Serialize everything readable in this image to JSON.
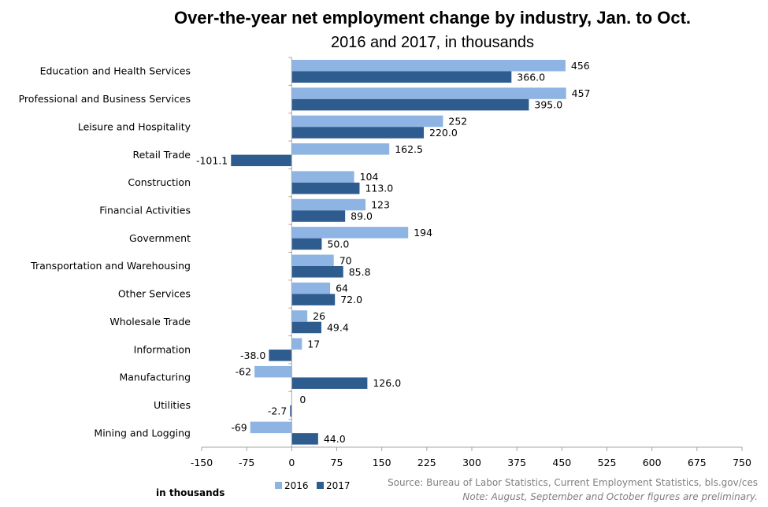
{
  "chart_data": {
    "type": "bar",
    "orientation": "horizontal",
    "title": "Over-the-year net employment change by industry, Jan. to Oct.",
    "subtitle": "2016 and 2017, in thousands",
    "categories": [
      "Education and Health Services",
      "Professional and Business Services",
      "Leisure and Hospitality",
      "Retail Trade",
      "Construction",
      "Financial Activities",
      "Government",
      "Transportation and Warehousing",
      "Other Services",
      "Wholesale Trade",
      "Information",
      "Manufacturing",
      "Utilities",
      "Mining and Logging"
    ],
    "series": [
      {
        "name": "2016",
        "color": "#8eb4e3",
        "values": [
          456,
          457,
          252,
          162.5,
          104,
          123,
          194,
          70,
          64,
          26,
          17,
          -62,
          0,
          -69
        ],
        "labels": [
          "456",
          "457",
          "252",
          "162.5",
          "104",
          "123",
          "194",
          "70",
          "64",
          "26",
          "17",
          "-62",
          "0",
          "-69"
        ]
      },
      {
        "name": "2017",
        "color": "#2e5c8f",
        "values": [
          366.0,
          395.0,
          220.0,
          -101.1,
          113.0,
          89.0,
          50.0,
          85.8,
          72.0,
          49.4,
          -38.0,
          126.0,
          -2.7,
          44.0
        ],
        "labels": [
          "366.0",
          "395.0",
          "220.0",
          "-101.1",
          "113.0",
          "89.0",
          "50.0",
          "85.8",
          "72.0",
          "49.4",
          "-38.0",
          "126.0",
          "-2.7",
          "44.0"
        ]
      }
    ],
    "xlim": [
      -150,
      750
    ],
    "xticks": [
      -150,
      -75,
      0,
      75,
      150,
      225,
      300,
      375,
      450,
      525,
      600,
      675,
      750
    ],
    "xlabel": "in thousands",
    "grid": false,
    "legend": "bottom-left",
    "source": "Source: Bureau of Labor Statistics, Current Employment Statistics, bls.gov/ces",
    "note": "Note: August, September and October figures are preliminary."
  }
}
